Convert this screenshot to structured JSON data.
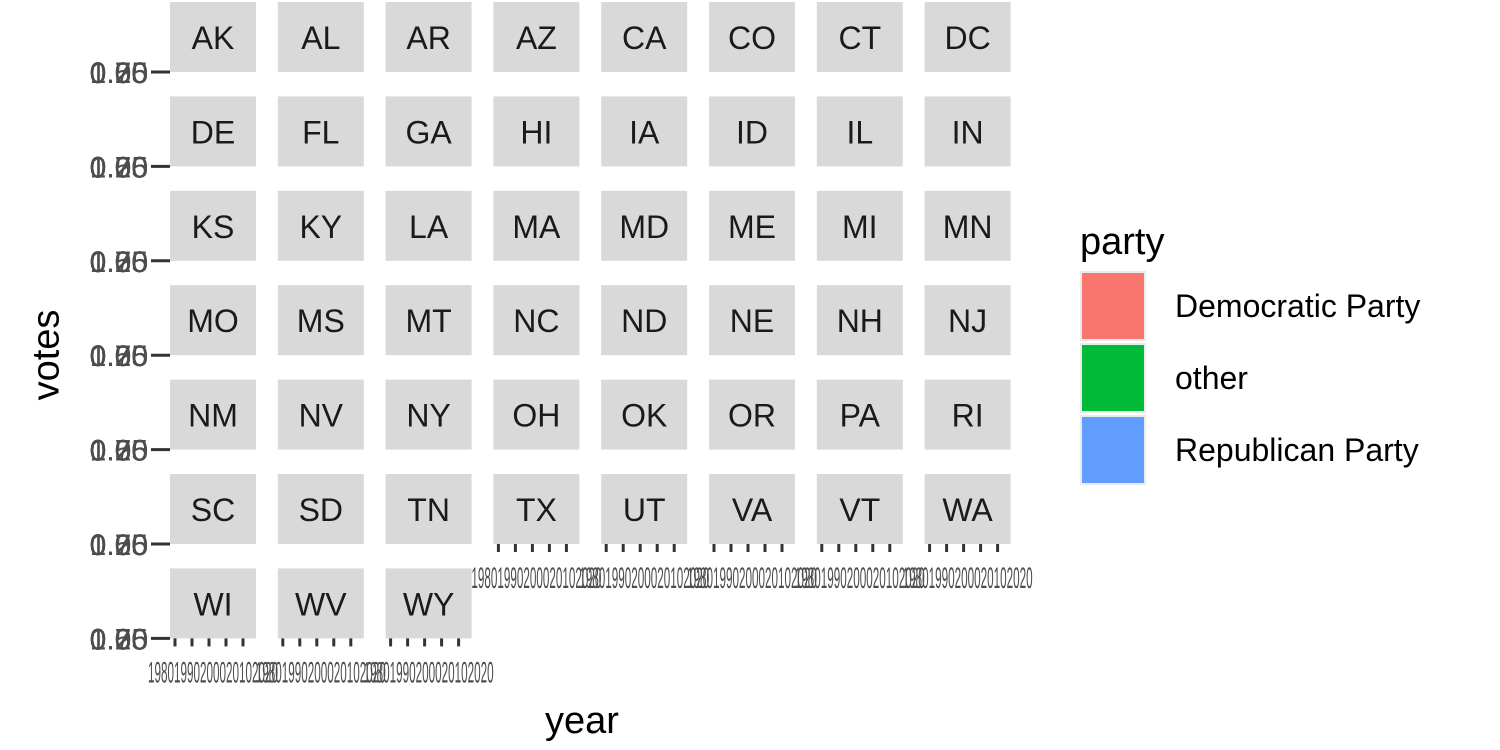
{
  "chart_data": {
    "type": "area",
    "xlabel": "year",
    "ylabel": "votes",
    "panels": [
      "AK",
      "AL",
      "AR",
      "AZ",
      "CA",
      "CO",
      "CT",
      "DC",
      "DE",
      "FL",
      "GA",
      "HI",
      "IA",
      "ID",
      "IL",
      "IN",
      "KS",
      "KY",
      "LA",
      "MA",
      "MD",
      "ME",
      "MI",
      "MN",
      "MO",
      "MS",
      "MT",
      "NC",
      "ND",
      "NE",
      "NH",
      "NJ",
      "NM",
      "NV",
      "NY",
      "OH",
      "OK",
      "OR",
      "PA",
      "RI",
      "SC",
      "SD",
      "TN",
      "TX",
      "UT",
      "VA",
      "VT",
      "WA",
      "WI",
      "WV",
      "WY"
    ],
    "y_tick_labels": [
      "0.00",
      "0.25",
      "0.50",
      "0.75",
      "1.00"
    ],
    "x_tick_labels": [
      "1980",
      "1990",
      "2000",
      "2010",
      "2020"
    ],
    "x_tick_label_display": "1980​1990​2000​2010​2020",
    "series": [
      {
        "name": "Democratic Party",
        "values": []
      },
      {
        "name": "other",
        "values": []
      },
      {
        "name": "Republican Party",
        "values": []
      }
    ],
    "legend": {
      "title": "party",
      "position": "right",
      "entries": [
        {
          "label": "Democratic Party",
          "color": "#F8766D"
        },
        {
          "label": "other",
          "color": "#00BA38"
        },
        {
          "label": "Republican Party",
          "color": "#619CFF"
        }
      ]
    },
    "strip_color": "#d9d9d9",
    "grid": false
  }
}
